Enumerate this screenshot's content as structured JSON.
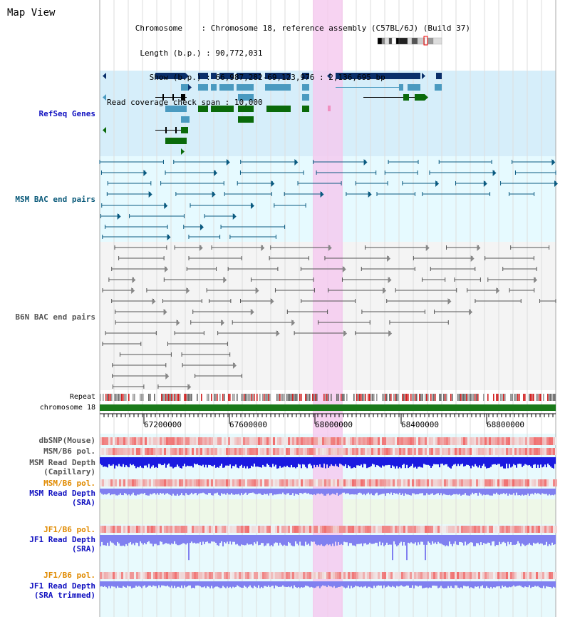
{
  "view": {
    "title": "Map View",
    "info": {
      "chromosome_label": "Chromosome",
      "chromosome_value": "Chromosome 18, reference assembly (C57BL/6J) (Build 37)",
      "length_label": "Length (b.p.)",
      "length_value": "90,772,031",
      "show_label": "Show (b.p.)",
      "show_value": "66,987,282-69,123,976 : 2,136,695 bp",
      "coverage_label": "Read coverage check span",
      "coverage_value": "10,000"
    }
  },
  "tracks": {
    "refseq": "RefSeq Genes",
    "msm_bac": "MSM BAC end pairs",
    "b6n_bac": "B6N BAC end pairs",
    "repeat": "Repeat",
    "chromosome": "chromosome 18",
    "dbsnp": "dbSNP(Mouse)",
    "msm_b6_pol": "MSM/B6 pol.",
    "msm_read_depth_cap_1": "MSM Read Depth",
    "msm_read_depth_cap_2": "(Capillary)",
    "msm_b6_pol2": "MSM/B6 pol.",
    "msm_read_depth_sra_1": "MSM Read Depth",
    "msm_read_depth_sra_2": "(SRA)",
    "jf1_b6_pol": "JF1/B6 pol.",
    "jf1_read_depth_sra_1": "JF1 Read Depth",
    "jf1_read_depth_sra_2": "(SRA)",
    "jf1_b6_pol2": "JF1/B6 pol.",
    "jf1_read_depth_trim_1": "JF1 Read Depth",
    "jf1_read_depth_trim_2": "(SRA trimmed)"
  },
  "axis": {
    "ticks": [
      "67200000",
      "67600000",
      "68000000",
      "68400000",
      "68800000"
    ]
  },
  "colors": {
    "highlight": "#f5c8ef",
    "refseq_bg": "#d6eefa",
    "msm_bg": "#e6faff",
    "b6n_bg": "#f4f4f4",
    "lower_bg": "#e8fafd",
    "chromosome": "#1a7a1a",
    "gene_dark": "#0a2f6a",
    "gene_mid": "#4a9ac0",
    "gene_green": "#0a6a0a",
    "msm_line": "#0a5a80",
    "b6n_line": "#555555",
    "depth_blue": "#1a1ae0",
    "depth_light": "#8080f0"
  }
}
